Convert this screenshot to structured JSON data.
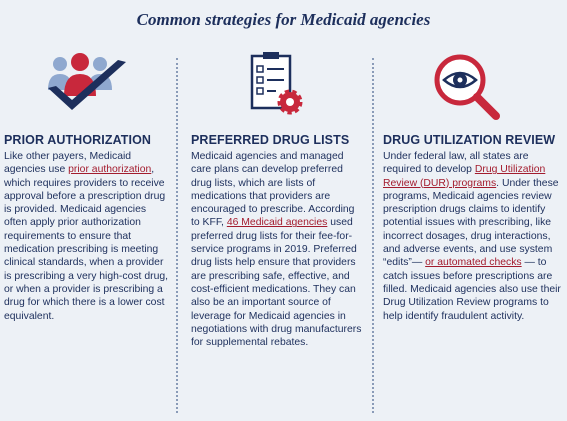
{
  "header": {
    "title": "Common strategies for Medicaid agencies"
  },
  "columns": [
    {
      "heading": "PRIOR AUTHORIZATION",
      "body": [
        {
          "text": "Like other payers, Medicaid agencies use "
        },
        {
          "text": "prior authorization",
          "link": true
        },
        {
          "text": ", which requires providers to receive approval before a prescription drug is provided. Medicaid agencies often apply prior authorization requirements to ensure that medication prescribing is meeting clinical standards, when a provider is prescribing a very high-cost drug, or when a provider is prescribing a drug for which there is a lower cost equivalent."
        }
      ]
    },
    {
      "heading": "PREFERRED DRUG LISTS",
      "body": [
        {
          "text": "Medicaid agencies and managed care plans can develop preferred drug lists, which are lists of medications that providers are encouraged to prescribe. According to KFF, "
        },
        {
          "text": "46 Medicaid agencies",
          "link": true
        },
        {
          "text": " used preferred drug lists for their fee-for-service programs in 2019. Preferred drug lists help ensure that providers are prescribing safe, effective, and cost-efficient medications. They can also be an important source of leverage for Medicaid agencies in negotiations with drug manufacturers for supplemental rebates."
        }
      ]
    },
    {
      "heading": "DRUG UTILIZATION REVIEW",
      "body": [
        {
          "text": "Under federal law, all states are required to develop "
        },
        {
          "text": "Drug Utilization Review (DUR) programs",
          "link": true
        },
        {
          "text": ". Under these programs, Medicaid agencies review prescription drugs claims to identify potential issues with prescribing, like incorrect dosages, drug interactions, and adverse events, and use system “edits”— "
        },
        {
          "text": "or automated checks",
          "link": true
        },
        {
          "text": " — to catch issues before prescriptions are filled. Medicaid agencies also use their Drug Utilization Review programs to help identify fraudulent activity."
        }
      ]
    }
  ]
}
